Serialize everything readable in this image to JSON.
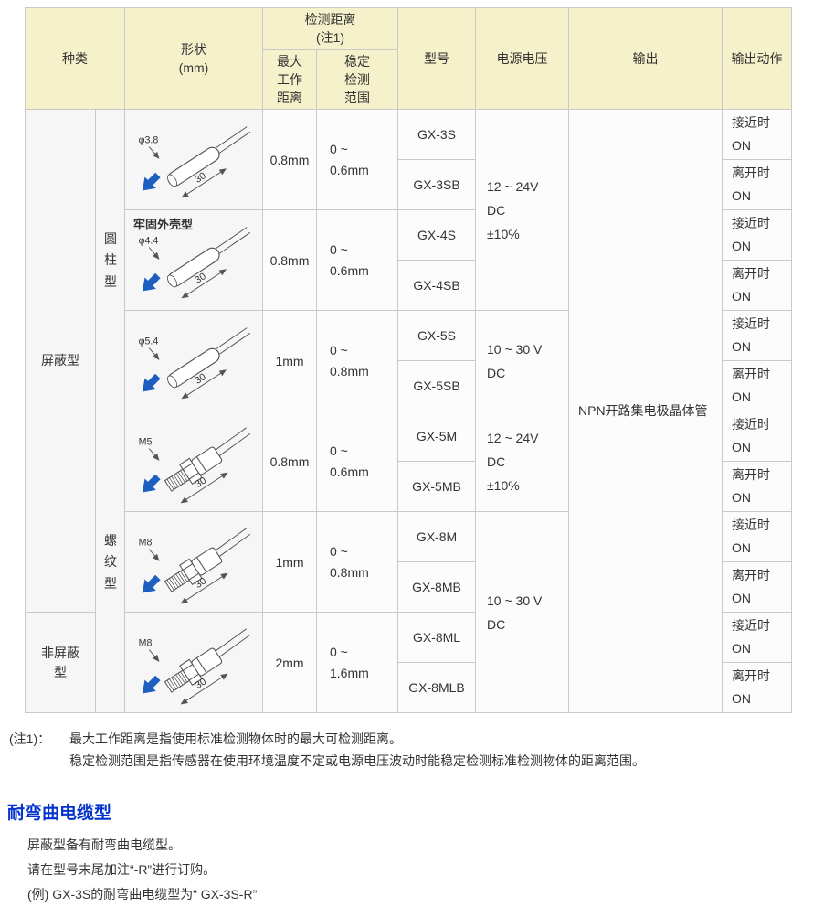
{
  "colors": {
    "header_bg": "#f5f1cb",
    "border": "#c9c9c9",
    "model_text": "#3a5690",
    "arrow_blue": "#1d5fc0",
    "section_title_blue": "#0433cc"
  },
  "table": {
    "headers": {
      "type": "种类",
      "shape": [
        "形状",
        "(mm)"
      ],
      "detect": [
        "检测距离",
        "(注1)"
      ],
      "max": [
        "最大",
        "工作",
        "距离"
      ],
      "stable": [
        "稳定",
        "检测",
        "范围"
      ],
      "model": "型号",
      "voltage": "电源电压",
      "output": "输出",
      "action": "输出动作"
    },
    "types": [
      {
        "label": "屏蔽型"
      },
      {
        "label": "非屏蔽型"
      }
    ],
    "subtypes": [
      {
        "label": "圆柱型"
      },
      {
        "label": "螺纹型"
      }
    ],
    "shapes": [
      {
        "kind": "cylinder",
        "dia": "φ3.8",
        "len": "30",
        "note": ""
      },
      {
        "kind": "cylinder",
        "dia": "φ4.4",
        "len": "30",
        "note": "牢固外壳型"
      },
      {
        "kind": "cylinder",
        "dia": "φ5.4",
        "len": "30",
        "note": ""
      },
      {
        "kind": "thread",
        "dia": "M5",
        "len": "30",
        "note": ""
      },
      {
        "kind": "thread",
        "dia": "M8",
        "len": "30",
        "note": ""
      },
      {
        "kind": "thread",
        "dia": "M8",
        "len": "30",
        "note": ""
      }
    ],
    "max": [
      "0.8mm",
      "0.8mm",
      "1mm",
      "0.8mm",
      "1mm",
      "2mm"
    ],
    "stable": [
      [
        "0 ~",
        "0.6mm"
      ],
      [
        "0 ~",
        "0.6mm"
      ],
      [
        "0 ~",
        "0.8mm"
      ],
      [
        "0 ~",
        "0.6mm"
      ],
      [
        "0 ~",
        "0.8mm"
      ],
      [
        "0 ~",
        "1.6mm"
      ]
    ],
    "models": [
      "GX-3S",
      "GX-3SB",
      "GX-4S",
      "GX-4SB",
      "GX-5S",
      "GX-5SB",
      "GX-5M",
      "GX-5MB",
      "GX-8M",
      "GX-8MB",
      "GX-8ML",
      "GX-8MLB"
    ],
    "actions": [
      [
        "接近时",
        "ON"
      ],
      [
        "离开时",
        "ON"
      ],
      [
        "接近时",
        "ON"
      ],
      [
        "离开时",
        "ON"
      ],
      [
        "接近时",
        "ON"
      ],
      [
        "离开时",
        "ON"
      ],
      [
        "接近时",
        "ON"
      ],
      [
        "离开时",
        "ON"
      ],
      [
        "接近时",
        "ON"
      ],
      [
        "离开时",
        "ON"
      ],
      [
        "接近时",
        "ON"
      ],
      [
        "离开时",
        "ON"
      ]
    ],
    "voltages": [
      [
        "12 ~ 24V",
        "DC",
        "±10%"
      ],
      [
        "10 ~ 30 V",
        "DC",
        ""
      ],
      [
        "12 ~ 24V",
        "DC",
        "±10%"
      ],
      [
        "10 ~ 30 V",
        "DC",
        ""
      ]
    ],
    "output": "NPN开路集电极晶体管"
  },
  "notes": {
    "label": "(注1)：",
    "line1": "最大工作距离是指使用标准检测物体时的最大可检测距离。",
    "line2": "稳定检测范围是指传感器在使用环境温度不定或电源电压波动时能稳定检测标准检测物体的距离范围。"
  },
  "section": {
    "title": "耐弯曲电缆型",
    "lines": [
      "屏蔽型备有耐弯曲电缆型。",
      "请在型号末尾加注“-R”进行订购。",
      "(例) GX-3S的耐弯曲电缆型为“ GX-3S-R”"
    ]
  }
}
